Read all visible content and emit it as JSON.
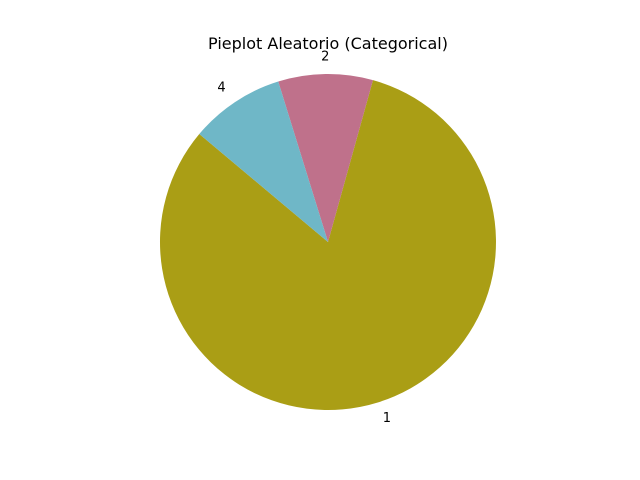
{
  "chart_data": {
    "type": "pie",
    "title": "Pieplot Aleatorio (Categorical)",
    "slices": [
      {
        "label": "1",
        "value": 81.8,
        "color": "#aa9e15"
      },
      {
        "label": "2",
        "value": 9.1,
        "color": "#bf718b"
      },
      {
        "label": "4",
        "value": 9.1,
        "color": "#6fb7c7"
      }
    ],
    "start_angle_deg": 140,
    "direction": "counterclockwise",
    "legend": "none"
  }
}
